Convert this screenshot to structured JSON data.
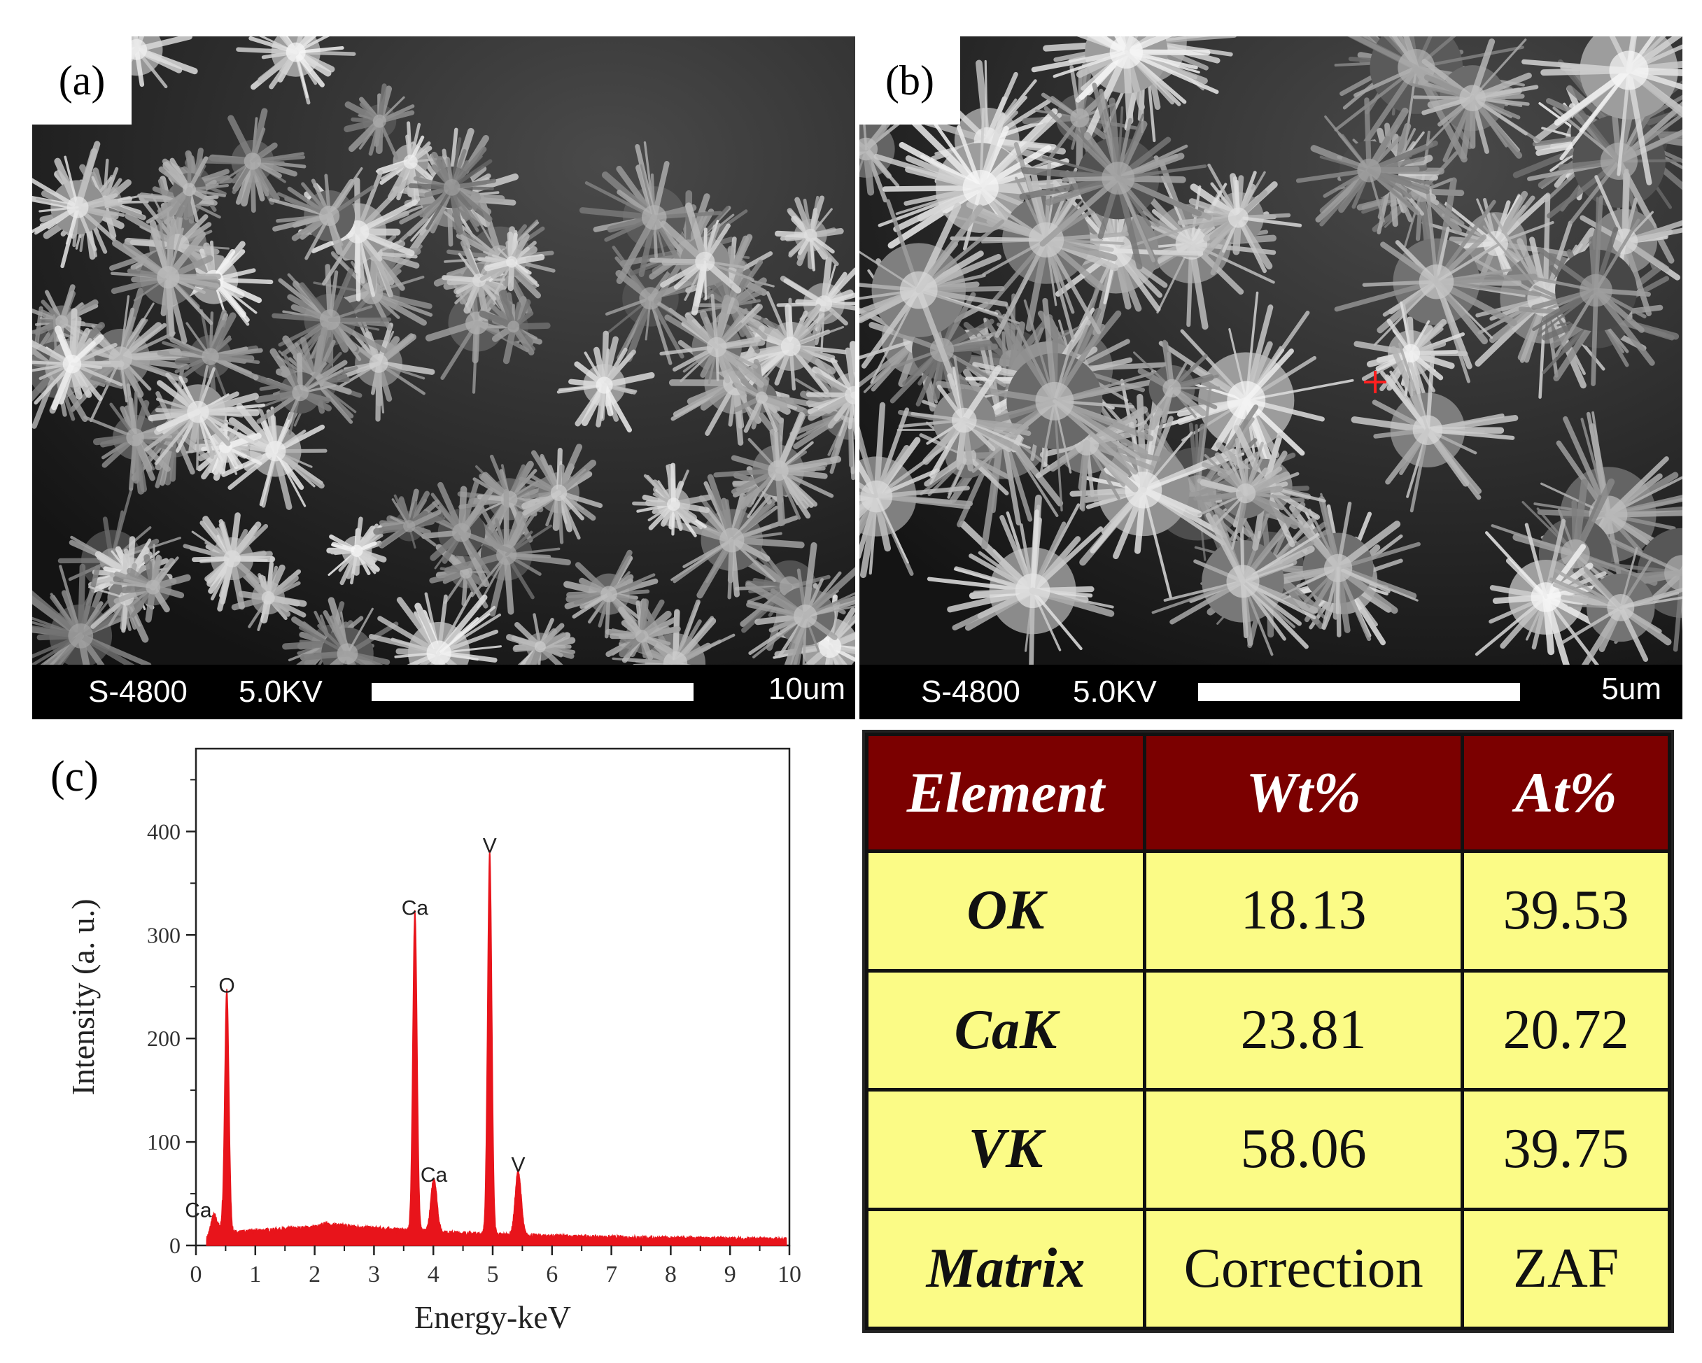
{
  "panel_a": {
    "tag": "(a)",
    "instrument": "S-4800",
    "voltage": "5.0KV",
    "scale_label": "10um"
  },
  "panel_b": {
    "tag": "(b)",
    "instrument": "S-4800",
    "voltage": "5.0KV",
    "scale_label": "5um"
  },
  "panel_c": {
    "tag": "(c)"
  },
  "chart_data": {
    "type": "line",
    "xlabel": "Energy-keV",
    "ylabel": "Intensity (a. u.)",
    "xlim": [
      0,
      10
    ],
    "ylim": [
      0,
      480
    ],
    "xticks": [
      0,
      1,
      2,
      3,
      4,
      5,
      6,
      7,
      8,
      9,
      10
    ],
    "yticks": [
      0,
      100,
      200,
      300,
      400
    ],
    "series_color": "#e8141b",
    "peaks": [
      {
        "label": "Ca",
        "x": 0.3,
        "y": 18
      },
      {
        "label": "O",
        "x": 0.52,
        "y": 235
      },
      {
        "label": "Ca",
        "x": 3.69,
        "y": 310
      },
      {
        "label": "Ca",
        "x": 4.01,
        "y": 52
      },
      {
        "label": "V",
        "x": 4.95,
        "y": 370
      },
      {
        "label": "V",
        "x": 5.43,
        "y": 62
      }
    ]
  },
  "table": {
    "headers": [
      "Element",
      "Wt%",
      "At%"
    ],
    "rows": [
      [
        "OK",
        "18.13",
        "39.53"
      ],
      [
        "CaK",
        "23.81",
        "20.72"
      ],
      [
        "VK",
        "58.06",
        "39.75"
      ],
      [
        "Matrix",
        "Correction",
        "ZAF"
      ]
    ],
    "header_bg": "#7b0000",
    "cell_bg": "#fbfb86"
  }
}
